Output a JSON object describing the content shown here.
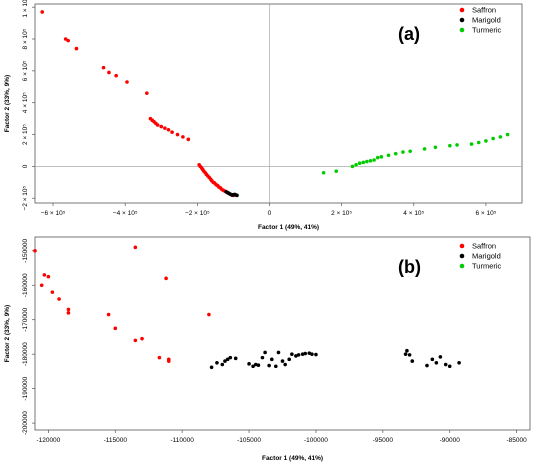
{
  "chart_data": [
    {
      "type": "scatter",
      "panel_label": "(a)",
      "xlabel": "Factor 1 (49%, 41%)",
      "ylabel": "Factor 2 (33%, 9%)",
      "xlim": [
        -650000,
        700000
      ],
      "ylim": [
        -230000,
        1020000
      ],
      "x_ticks": [
        -600000,
        -400000,
        -200000,
        0,
        200000,
        400000,
        600000
      ],
      "x_tick_labels": [
        "−6 × 10⁵",
        "−4 × 10⁵",
        "−2 × 10⁵",
        "0",
        "2 × 10⁵",
        "4 × 10⁵",
        "6 × 10⁵"
      ],
      "y_ticks": [
        -200000,
        0,
        200000,
        400000,
        600000,
        800000,
        1000000
      ],
      "y_tick_labels": [
        "−2 × 10⁵",
        "0",
        "2 × 10⁵",
        "4 × 10⁵",
        "6 × 10⁵",
        "8 × 10⁵",
        "1 × 10⁶"
      ],
      "zero_lines": true,
      "grid": false,
      "legend": "top-right",
      "series": [
        {
          "name": "Saffron",
          "color": "#ff0000",
          "x": [
            -630000,
            -565000,
            -558000,
            -535000,
            -460000,
            -445000,
            -425000,
            -395000,
            -340000,
            -330000,
            -325000,
            -320000,
            -315000,
            -310000,
            -300000,
            -290000,
            -280000,
            -270000,
            -255000,
            -240000,
            -225000,
            -195000,
            -192000,
            -188000,
            -185000,
            -182000,
            -178000,
            -175000,
            -171000,
            -167000,
            -163000,
            -160000,
            -156000,
            -152000,
            -148000,
            -144000,
            -140000,
            -136000,
            -132000,
            -128000,
            -124000,
            -120000,
            -116000,
            -112000,
            -108000,
            -104000,
            -100000
          ],
          "y": [
            970000,
            800000,
            790000,
            740000,
            620000,
            590000,
            570000,
            530000,
            460000,
            300000,
            290000,
            280000,
            270000,
            260000,
            250000,
            240000,
            230000,
            215000,
            200000,
            185000,
            170000,
            10000,
            0,
            -10000,
            -20000,
            -30000,
            -40000,
            -50000,
            -60000,
            -70000,
            -80000,
            -90000,
            -100000,
            -105000,
            -115000,
            -120000,
            -130000,
            -135000,
            -145000,
            -150000,
            -155000,
            -160000,
            -165000,
            -170000,
            -175000,
            -180000,
            -182000
          ]
        },
        {
          "name": "Marigold",
          "color": "#000000",
          "x": [
            -120000,
            -116000,
            -112000,
            -108000,
            -104000,
            -100000,
            -96000,
            -93000,
            -90000
          ],
          "y": [
            -160000,
            -165000,
            -170000,
            -175000,
            -180000,
            -178000,
            -176000,
            -180000,
            -182000
          ]
        },
        {
          "name": "Turmeric",
          "color": "#00cc00",
          "x": [
            150000,
            185000,
            230000,
            240000,
            250000,
            260000,
            270000,
            280000,
            290000,
            300000,
            310000,
            330000,
            350000,
            370000,
            390000,
            430000,
            460000,
            500000,
            520000,
            560000,
            580000,
            600000,
            620000,
            640000,
            660000
          ],
          "y": [
            -40000,
            -30000,
            0,
            10000,
            20000,
            25000,
            30000,
            35000,
            40000,
            55000,
            60000,
            70000,
            80000,
            90000,
            95000,
            110000,
            120000,
            130000,
            135000,
            140000,
            150000,
            160000,
            175000,
            185000,
            200000
          ]
        }
      ]
    },
    {
      "type": "scatter",
      "panel_label": "(b)",
      "xlabel": "Factor 1 (49%, 41%)",
      "ylabel": "Factor 2 (33%, 9%)",
      "xlim": [
        -121000,
        -84000
      ],
      "ylim": [
        -202000,
        -146000
      ],
      "x_ticks": [
        -120000,
        -115000,
        -110000,
        -105000,
        -100000,
        -95000,
        -90000,
        -85000
      ],
      "x_tick_labels": [
        "-120000",
        "-115000",
        "-110000",
        "-105000",
        "-100000",
        "-95000",
        "-90000",
        "-85000"
      ],
      "y_ticks": [
        -150000,
        -160000,
        -170000,
        -180000,
        -190000,
        -200000
      ],
      "y_tick_labels": [
        "-150000",
        "-160000",
        "-170000",
        "-180000",
        "-190000",
        "-200000"
      ],
      "zero_lines": false,
      "grid": false,
      "legend": "top-right",
      "series": [
        {
          "name": "Saffron",
          "color": "#ff0000",
          "x": [
            -121000,
            -120500,
            -120300,
            -120000,
            -119700,
            -119200,
            -118500,
            -118500,
            -115500,
            -115000,
            -113500,
            -113000,
            -113500,
            -111700,
            -111200,
            -111000,
            -111000,
            -108000
          ],
          "y": [
            -150000,
            -160000,
            -157000,
            -157500,
            -162000,
            -164000,
            -168000,
            -167000,
            -168500,
            -172500,
            -176000,
            -175500,
            -149000,
            -181000,
            -158000,
            -182000,
            -181500,
            -168500
          ]
        },
        {
          "name": "Marigold",
          "color": "#000000",
          "x": [
            -107800,
            -107400,
            -107000,
            -106800,
            -106600,
            -106400,
            -106000,
            -105000,
            -104700,
            -104500,
            -104300,
            -104000,
            -103800,
            -103500,
            -103300,
            -103000,
            -102800,
            -102500,
            -102300,
            -102000,
            -101800,
            -101500,
            -101300,
            -101000,
            -100800,
            -100500,
            -100300,
            -100000,
            -93300,
            -93200,
            -93000,
            -92800,
            -91700,
            -91300,
            -91000,
            -90700,
            -90300,
            -90000,
            -89300
          ],
          "y": [
            -183800,
            -182500,
            -183000,
            -182000,
            -181500,
            -181000,
            -181200,
            -182800,
            -183500,
            -183000,
            -183200,
            -181000,
            -179500,
            -183300,
            -181500,
            -183500,
            -179500,
            -182000,
            -183000,
            -181500,
            -180000,
            -180500,
            -180200,
            -180000,
            -179800,
            -179700,
            -180000,
            -180100,
            -180000,
            -179000,
            -180200,
            -182000,
            -183300,
            -181500,
            -182500,
            -180800,
            -183000,
            -183500,
            -182500
          ]
        },
        {
          "name": "Turmeric",
          "color": "#00cc00",
          "x": [],
          "y": []
        }
      ]
    }
  ]
}
